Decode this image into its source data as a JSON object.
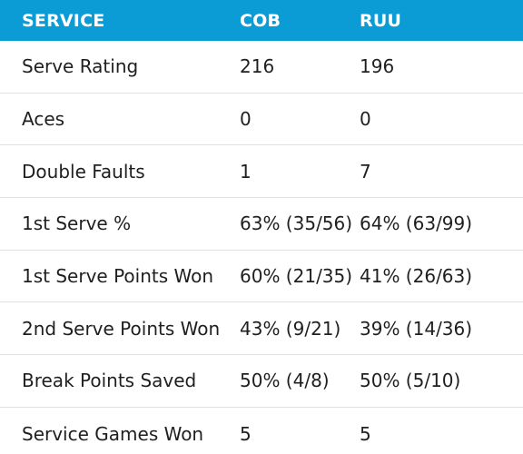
{
  "header": {
    "section_title": "SERVICE",
    "player1": "COB",
    "player2": "RUU"
  },
  "rows": [
    {
      "label": "Serve Rating",
      "p1": "216",
      "p2": "196"
    },
    {
      "label": "Aces",
      "p1": "0",
      "p2": "0"
    },
    {
      "label": "Double Faults",
      "p1": "1",
      "p2": "7"
    },
    {
      "label": "1st Serve %",
      "p1": "63% (35/56)",
      "p2": "64% (63/99)"
    },
    {
      "label": "1st Serve Points Won",
      "p1": "60% (21/35)",
      "p2": "41% (26/63)"
    },
    {
      "label": "2nd Serve Points Won",
      "p1": "43% (9/21)",
      "p2": "39% (14/36)"
    },
    {
      "label": "Break Points Saved",
      "p1": "50% (4/8)",
      "p2": "50% (5/10)"
    },
    {
      "label": "Service Games Won",
      "p1": "5",
      "p2": "5"
    }
  ],
  "colors": {
    "header_bg": "#0b9bd5",
    "header_text": "#ffffff",
    "row_divider": "#e1e1e1"
  }
}
